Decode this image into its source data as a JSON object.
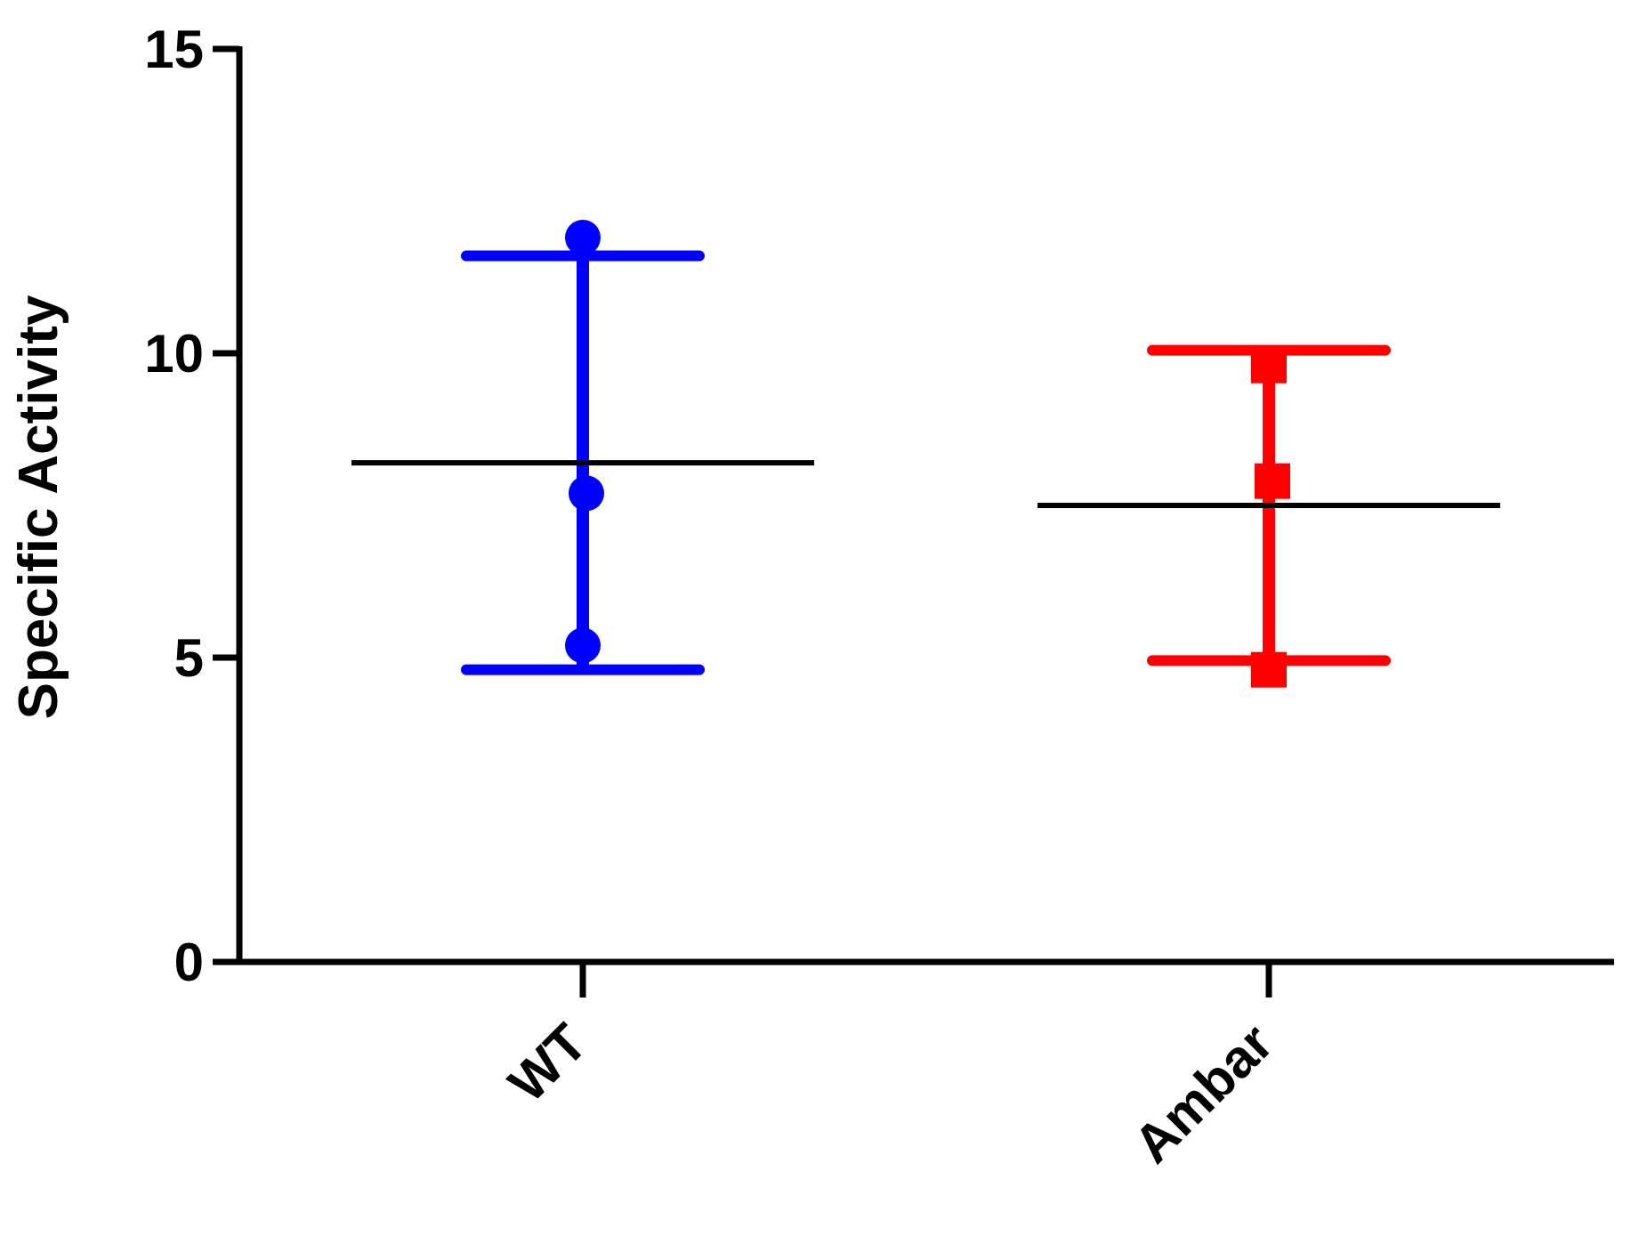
{
  "chart_data": {
    "type": "dot",
    "y_label": "Specific Activity",
    "ylim": [
      0,
      15
    ],
    "yticks": [
      0,
      5,
      10,
      15
    ],
    "mean_color": "#000000",
    "series": [
      {
        "name": "WT",
        "color": "#0000ff",
        "marker": "circle",
        "values": [
          11.9,
          7.7,
          5.2
        ],
        "mean": 8.2,
        "error": 3.4
      },
      {
        "name": "Ambar",
        "color": "#ff0000",
        "marker": "square",
        "values": [
          9.8,
          7.9,
          4.8
        ],
        "mean": 7.5,
        "error": 2.55
      }
    ]
  }
}
